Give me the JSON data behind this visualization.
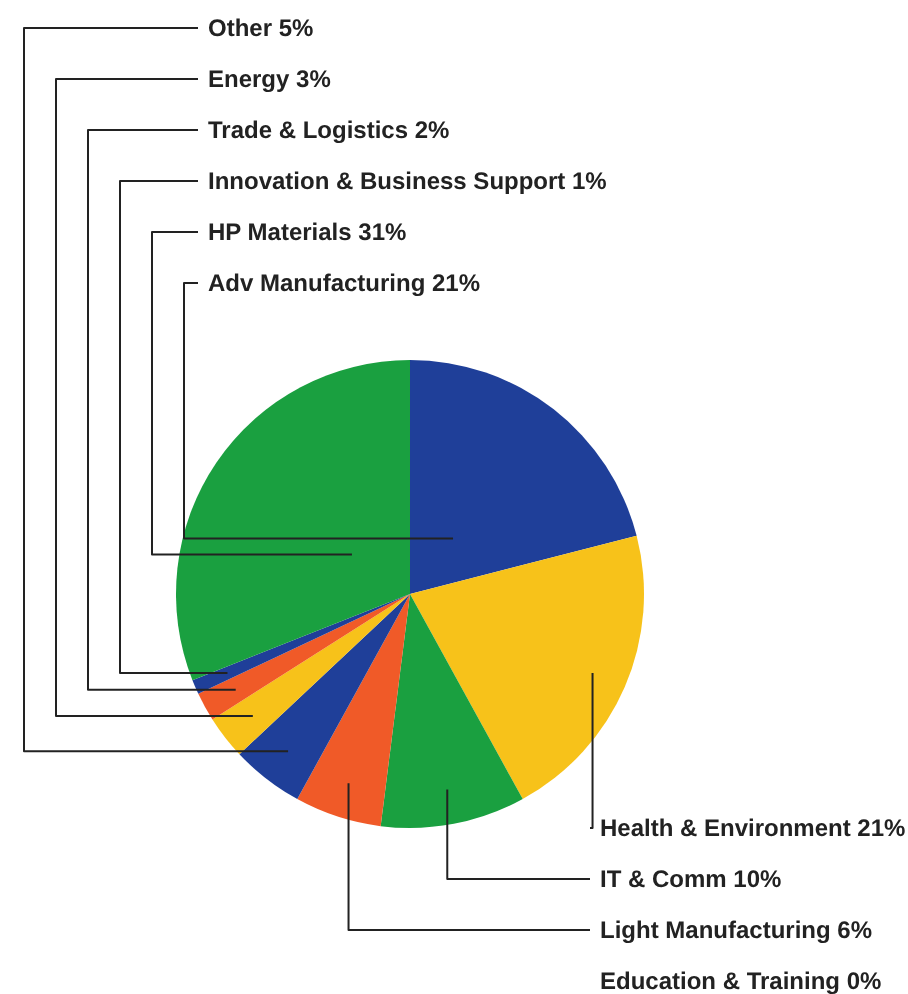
{
  "chart_data": {
    "type": "pie",
    "categories": [
      "Adv Manufacturing",
      "Health & Environment",
      "IT & Comm",
      "Light Manufacturing",
      "Education & Training",
      "Other",
      "Energy",
      "Trade & Logistics",
      "Innovation & Business Support",
      "HP Materials"
    ],
    "values": [
      21,
      21,
      10,
      6,
      0,
      5,
      3,
      2,
      1,
      31
    ],
    "value_labels": [
      "21%",
      "21%",
      "10%",
      "6%",
      "0%",
      "5%",
      "3%",
      "2%",
      "1%",
      "31%"
    ],
    "colors": [
      "#1f3f99",
      "#f7c21a",
      "#1aa040",
      "#f05a28",
      "#999999",
      "#1f3f99",
      "#f7c21a",
      "#f05a28",
      "#1f3f99",
      "#1aa040"
    ]
  }
}
